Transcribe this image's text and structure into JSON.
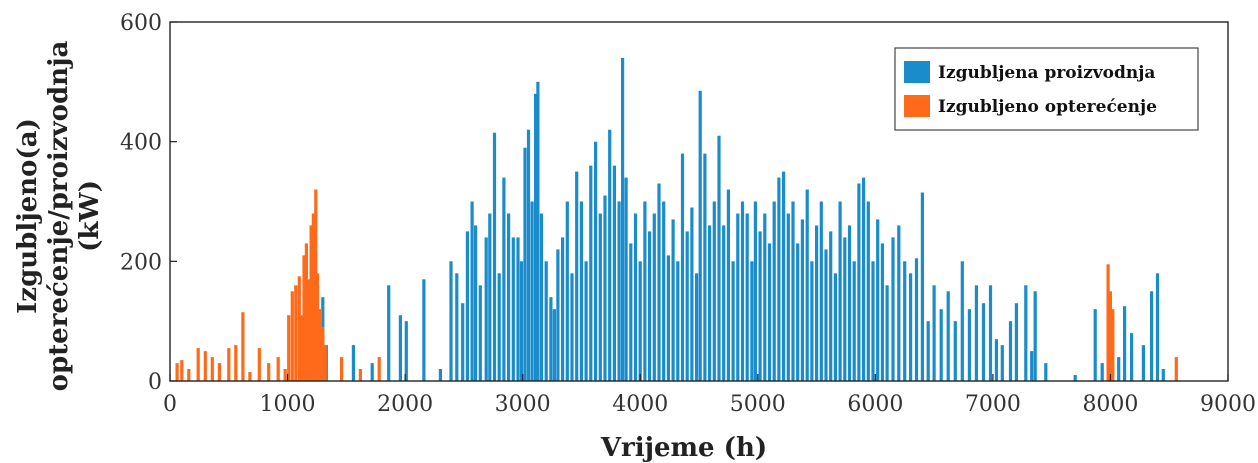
{
  "chart_data": {
    "type": "bar",
    "title": "",
    "xlabel": "Vrijeme (h)",
    "ylabel_lines": [
      "Izgubljeno(a)",
      "opterećenje/proizvodnja",
      "(kW)"
    ],
    "xlim": [
      0,
      9000
    ],
    "ylim": [
      0,
      600
    ],
    "xticks": [
      "0",
      "1000",
      "2000",
      "3000",
      "4000",
      "5000",
      "6000",
      "7000",
      "8000",
      "9000"
    ],
    "yticks": [
      "0",
      "200",
      "400",
      "600"
    ],
    "grid": false,
    "legend_position": "top-right",
    "series": [
      {
        "name": "Izgubljena proizvodnja",
        "color": "#1a8ccc",
        "points": [
          [
            1250,
            100
          ],
          [
            1300,
            140
          ],
          [
            1330,
            60
          ],
          [
            1560,
            60
          ],
          [
            1720,
            30
          ],
          [
            1860,
            160
          ],
          [
            1960,
            110
          ],
          [
            2010,
            100
          ],
          [
            2160,
            170
          ],
          [
            2300,
            20
          ],
          [
            2390,
            200
          ],
          [
            2440,
            180
          ],
          [
            2490,
            130
          ],
          [
            2530,
            250
          ],
          [
            2570,
            300
          ],
          [
            2600,
            260
          ],
          [
            2640,
            160
          ],
          [
            2690,
            240
          ],
          [
            2720,
            280
          ],
          [
            2760,
            415
          ],
          [
            2800,
            180
          ],
          [
            2840,
            340
          ],
          [
            2880,
            280
          ],
          [
            2920,
            240
          ],
          [
            2960,
            240
          ],
          [
            2990,
            200
          ],
          [
            3020,
            390
          ],
          [
            3050,
            420
          ],
          [
            3080,
            300
          ],
          [
            3110,
            480
          ],
          [
            3130,
            500
          ],
          [
            3160,
            280
          ],
          [
            3200,
            200
          ],
          [
            3240,
            140
          ],
          [
            3270,
            120
          ],
          [
            3300,
            220
          ],
          [
            3340,
            240
          ],
          [
            3380,
            300
          ],
          [
            3420,
            180
          ],
          [
            3460,
            350
          ],
          [
            3500,
            300
          ],
          [
            3540,
            200
          ],
          [
            3580,
            360
          ],
          [
            3620,
            400
          ],
          [
            3660,
            280
          ],
          [
            3700,
            310
          ],
          [
            3740,
            420
          ],
          [
            3780,
            360
          ],
          [
            3820,
            300
          ],
          [
            3850,
            540
          ],
          [
            3880,
            340
          ],
          [
            3920,
            230
          ],
          [
            3960,
            280
          ],
          [
            4000,
            200
          ],
          [
            4040,
            300
          ],
          [
            4080,
            250
          ],
          [
            4120,
            280
          ],
          [
            4160,
            330
          ],
          [
            4200,
            300
          ],
          [
            4240,
            210
          ],
          [
            4280,
            270
          ],
          [
            4320,
            200
          ],
          [
            4360,
            380
          ],
          [
            4400,
            250
          ],
          [
            4440,
            290
          ],
          [
            4480,
            180
          ],
          [
            4510,
            485
          ],
          [
            4550,
            380
          ],
          [
            4590,
            260
          ],
          [
            4630,
            300
          ],
          [
            4670,
            410
          ],
          [
            4710,
            260
          ],
          [
            4750,
            320
          ],
          [
            4790,
            200
          ],
          [
            4830,
            280
          ],
          [
            4870,
            300
          ],
          [
            4910,
            280
          ],
          [
            4950,
            200
          ],
          [
            4980,
            300
          ],
          [
            5020,
            250
          ],
          [
            5060,
            280
          ],
          [
            5100,
            230
          ],
          [
            5140,
            300
          ],
          [
            5180,
            340
          ],
          [
            5220,
            350
          ],
          [
            5260,
            280
          ],
          [
            5300,
            300
          ],
          [
            5340,
            230
          ],
          [
            5380,
            270
          ],
          [
            5420,
            320
          ],
          [
            5460,
            200
          ],
          [
            5500,
            260
          ],
          [
            5540,
            300
          ],
          [
            5580,
            220
          ],
          [
            5620,
            250
          ],
          [
            5660,
            180
          ],
          [
            5700,
            300
          ],
          [
            5740,
            240
          ],
          [
            5780,
            260
          ],
          [
            5820,
            200
          ],
          [
            5860,
            330
          ],
          [
            5900,
            340
          ],
          [
            5940,
            300
          ],
          [
            5980,
            200
          ],
          [
            6020,
            270
          ],
          [
            6060,
            230
          ],
          [
            6100,
            160
          ],
          [
            6150,
            240
          ],
          [
            6200,
            260
          ],
          [
            6250,
            200
          ],
          [
            6300,
            180
          ],
          [
            6350,
            205
          ],
          [
            6400,
            315
          ],
          [
            6450,
            100
          ],
          [
            6500,
            160
          ],
          [
            6560,
            120
          ],
          [
            6620,
            150
          ],
          [
            6680,
            100
          ],
          [
            6740,
            200
          ],
          [
            6800,
            120
          ],
          [
            6860,
            160
          ],
          [
            6920,
            130
          ],
          [
            6980,
            160
          ],
          [
            7030,
            70
          ],
          [
            7080,
            60
          ],
          [
            7150,
            100
          ],
          [
            7200,
            130
          ],
          [
            7280,
            160
          ],
          [
            7330,
            50
          ],
          [
            7360,
            150
          ],
          [
            7450,
            30
          ],
          [
            7700,
            10
          ],
          [
            7870,
            120
          ],
          [
            7930,
            30
          ],
          [
            7980,
            40
          ],
          [
            8070,
            40
          ],
          [
            8120,
            125
          ],
          [
            8180,
            80
          ],
          [
            8280,
            60
          ],
          [
            8350,
            150
          ],
          [
            8400,
            180
          ],
          [
            8450,
            20
          ]
        ]
      },
      {
        "name": "Izgubljeno opterećenje",
        "color": "#ff6a1a",
        "points": [
          [
            60,
            30
          ],
          [
            100,
            35
          ],
          [
            160,
            20
          ],
          [
            240,
            55
          ],
          [
            300,
            50
          ],
          [
            360,
            40
          ],
          [
            420,
            30
          ],
          [
            500,
            55
          ],
          [
            560,
            60
          ],
          [
            620,
            115
          ],
          [
            680,
            15
          ],
          [
            760,
            55
          ],
          [
            840,
            30
          ],
          [
            920,
            40
          ],
          [
            980,
            20
          ],
          [
            1010,
            110
          ],
          [
            1040,
            150
          ],
          [
            1070,
            160
          ],
          [
            1100,
            175
          ],
          [
            1120,
            110
          ],
          [
            1140,
            210
          ],
          [
            1160,
            230
          ],
          [
            1180,
            170
          ],
          [
            1200,
            260
          ],
          [
            1220,
            280
          ],
          [
            1240,
            320
          ],
          [
            1255,
            180
          ],
          [
            1280,
            120
          ],
          [
            1300,
            90
          ],
          [
            1320,
            60
          ],
          [
            1460,
            40
          ],
          [
            1620,
            20
          ],
          [
            1780,
            40
          ],
          [
            7980,
            195
          ],
          [
            8000,
            150
          ],
          [
            8020,
            120
          ],
          [
            8560,
            40
          ]
        ]
      }
    ]
  }
}
